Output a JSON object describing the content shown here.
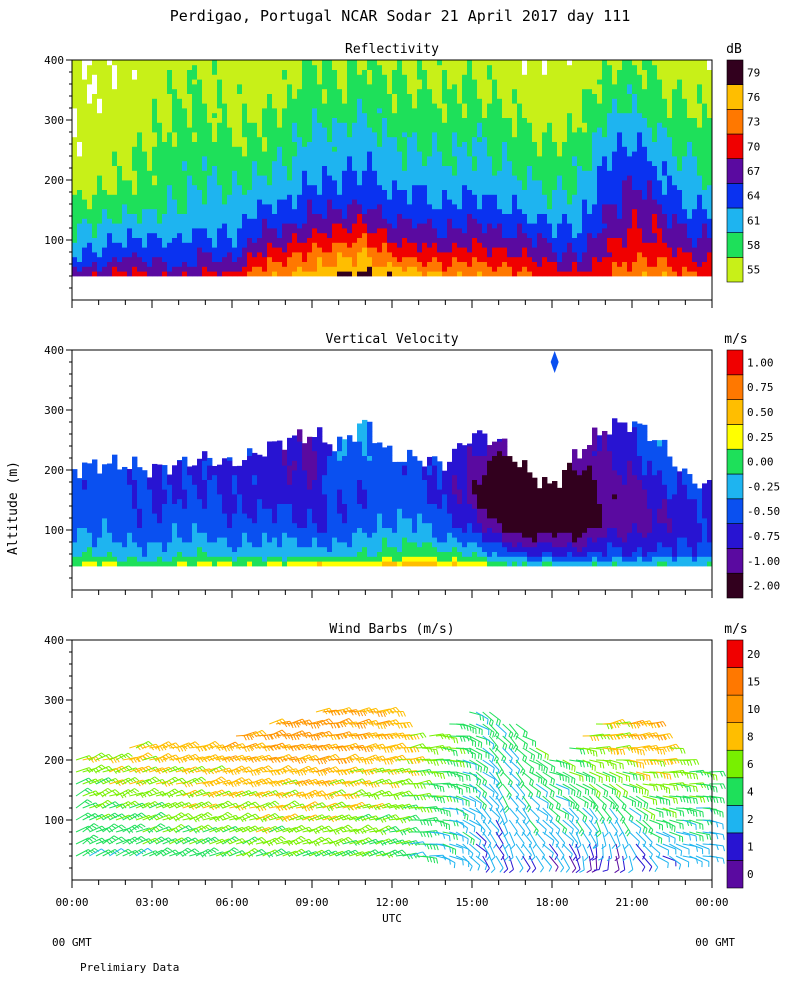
{
  "figure": {
    "title": "Perdigao, Portugal  NCAR Sodar  21 April 2017  day 111",
    "ylabel": "Altitude (m)",
    "xlabel": "UTC",
    "x_ticks": [
      "00:00",
      "03:00",
      "06:00",
      "09:00",
      "12:00",
      "15:00",
      "18:00",
      "21:00",
      "00:00"
    ],
    "y_ticks": [
      "100",
      "200",
      "300",
      "400"
    ],
    "footer_left": "00 GMT",
    "footer_right": "00 GMT",
    "note": "Prelimiary Data"
  },
  "chart_data": [
    {
      "type": "heatmap",
      "title": "Reflectivity",
      "unit": "dB",
      "xlabel": "UTC",
      "ylabel": "Altitude (m)",
      "xlim_hours": [
        0,
        24
      ],
      "ylim": [
        0,
        400
      ],
      "data_range_m": [
        40,
        400
      ],
      "levels": [
        "55",
        "58",
        "61",
        "64",
        "67",
        "70",
        "73",
        "76",
        "79"
      ],
      "colors": [
        "#c8f018",
        "#1ee05a",
        "#1eb4f0",
        "#0a32f0",
        "#5a0aa0",
        "#f00000",
        "#ff7800",
        "#ffbe00",
        "#32001e"
      ],
      "profile_heights_m": [
        40,
        55,
        75,
        100,
        130,
        160,
        200,
        260,
        330,
        400
      ],
      "profiles": [
        {
          "hour": 0.0,
          "values": [
            70,
            67,
            64,
            62,
            60,
            58,
            56,
            55,
            55,
            55
          ]
        },
        {
          "hour": 1.0,
          "values": [
            70,
            67,
            65,
            63,
            61,
            59,
            57,
            56,
            55,
            55
          ]
        },
        {
          "hour": 2.0,
          "values": [
            72,
            69,
            67,
            64,
            62,
            60,
            58,
            57,
            56,
            55
          ]
        },
        {
          "hour": 3.0,
          "values": [
            70,
            68,
            66,
            64,
            62,
            60,
            59,
            58,
            57,
            56
          ]
        },
        {
          "hour": 4.0,
          "values": [
            70,
            67,
            65,
            64,
            62,
            61,
            60,
            59,
            58,
            57
          ]
        },
        {
          "hour": 5.0,
          "values": [
            71,
            69,
            67,
            65,
            63,
            62,
            61,
            60,
            58,
            57
          ]
        },
        {
          "hour": 6.0,
          "values": [
            71,
            68,
            66,
            64,
            63,
            62,
            60,
            58,
            57,
            56
          ]
        },
        {
          "hour": 7.0,
          "values": [
            75,
            73,
            71,
            68,
            66,
            63,
            61,
            59,
            57,
            56
          ]
        },
        {
          "hour": 8.0,
          "values": [
            76,
            74,
            72,
            69,
            66,
            64,
            62,
            60,
            58,
            56
          ]
        },
        {
          "hour": 9.0,
          "values": [
            78,
            76,
            74,
            71,
            68,
            66,
            64,
            62,
            60,
            58
          ]
        },
        {
          "hour": 10.0,
          "values": [
            80,
            77,
            75,
            72,
            69,
            66,
            64,
            62,
            59,
            57
          ]
        },
        {
          "hour": 11.0,
          "values": [
            80,
            78,
            76,
            73,
            70,
            67,
            65,
            63,
            60,
            58
          ]
        },
        {
          "hour": 12.0,
          "values": [
            79,
            76,
            73,
            70,
            67,
            65,
            63,
            61,
            59,
            57
          ]
        },
        {
          "hour": 13.0,
          "values": [
            78,
            75,
            72,
            69,
            67,
            65,
            63,
            61,
            59,
            57
          ]
        },
        {
          "hour": 14.0,
          "values": [
            76,
            73,
            71,
            68,
            66,
            64,
            62,
            60,
            58,
            57
          ]
        },
        {
          "hour": 15.0,
          "values": [
            77,
            74,
            72,
            70,
            67,
            65,
            63,
            61,
            59,
            57
          ]
        },
        {
          "hour": 16.0,
          "values": [
            75,
            73,
            71,
            68,
            66,
            64,
            62,
            60,
            58,
            56
          ]
        },
        {
          "hour": 17.0,
          "values": [
            74,
            72,
            70,
            68,
            65,
            63,
            61,
            59,
            57,
            55
          ]
        },
        {
          "hour": 18.0,
          "values": [
            72,
            70,
            68,
            66,
            64,
            62,
            60,
            58,
            56,
            55
          ]
        },
        {
          "hour": 19.0,
          "values": [
            71,
            69,
            67,
            65,
            63,
            62,
            61,
            59,
            57,
            55
          ]
        },
        {
          "hour": 20.0,
          "values": [
            73,
            72,
            70,
            69,
            67,
            66,
            65,
            63,
            60,
            57
          ]
        },
        {
          "hour": 21.0,
          "values": [
            76,
            74,
            72,
            71,
            70,
            69,
            67,
            64,
            61,
            58
          ]
        },
        {
          "hour": 22.0,
          "values": [
            76,
            74,
            72,
            70,
            69,
            67,
            65,
            62,
            59,
            57
          ]
        },
        {
          "hour": 23.0,
          "values": [
            74,
            72,
            70,
            68,
            66,
            64,
            62,
            60,
            58,
            56
          ]
        },
        {
          "hour": 24.0,
          "values": [
            73,
            71,
            69,
            67,
            65,
            63,
            61,
            59,
            57,
            55
          ]
        }
      ]
    },
    {
      "type": "heatmap",
      "title": "Vertical Velocity",
      "unit": "m/s",
      "xlabel": "UTC",
      "ylabel": "Altitude (m)",
      "xlim_hours": [
        0,
        24
      ],
      "ylim": [
        0,
        400
      ],
      "levels": [
        "-2.00",
        "-1.00",
        "-0.75",
        "-0.50",
        "-0.25",
        "0.00",
        "0.25",
        "0.50",
        "0.75",
        "1.00"
      ],
      "colors": [
        "#32001e",
        "#5a0aa0",
        "#2814d2",
        "#0a50f0",
        "#1eb4f0",
        "#1ee05a",
        "#ffff00",
        "#ffbe00",
        "#ff7800",
        "#f00000"
      ],
      "profile_heights_m": [
        40,
        50,
        60,
        80,
        100,
        130,
        160,
        200,
        250,
        300
      ],
      "profiles": [
        {
          "hour": 0.0,
          "top": 200,
          "values": [
            0.3,
            0.1,
            0.0,
            -0.15,
            -0.3,
            -0.35,
            -0.4,
            -0.4,
            -0.4,
            -0.4
          ]
        },
        {
          "hour": 1.0,
          "top": 210,
          "values": [
            0.4,
            0.15,
            0.0,
            -0.2,
            -0.3,
            -0.4,
            -0.4,
            -0.4,
            -0.4,
            -0.4
          ]
        },
        {
          "hour": 2.0,
          "top": 210,
          "values": [
            0.2,
            0.05,
            -0.1,
            -0.25,
            -0.35,
            -0.4,
            -0.45,
            -0.45,
            -0.45,
            -0.45
          ]
        },
        {
          "hour": 3.0,
          "top": 200,
          "values": [
            0.1,
            -0.05,
            -0.2,
            -0.3,
            -0.4,
            -0.5,
            -0.55,
            -0.55,
            -0.55,
            -0.55
          ]
        },
        {
          "hour": 4.0,
          "top": 210,
          "values": [
            0.3,
            0.1,
            -0.1,
            -0.2,
            -0.3,
            -0.4,
            -0.5,
            -0.5,
            -0.5,
            -0.5
          ]
        },
        {
          "hour": 5.0,
          "top": 220,
          "values": [
            0.4,
            0.2,
            0.0,
            -0.2,
            -0.3,
            -0.4,
            -0.5,
            -0.55,
            -0.55,
            -0.55
          ]
        },
        {
          "hour": 6.0,
          "top": 210,
          "values": [
            0.3,
            0.1,
            -0.1,
            -0.3,
            -0.4,
            -0.5,
            -0.55,
            -0.6,
            -0.6,
            -0.6
          ]
        },
        {
          "hour": 7.0,
          "top": 230,
          "values": [
            0.3,
            0.1,
            -0.1,
            -0.3,
            -0.4,
            -0.5,
            -0.6,
            -0.6,
            -0.6,
            -0.6
          ]
        },
        {
          "hour": 8.0,
          "top": 250,
          "values": [
            0.4,
            0.1,
            -0.1,
            -0.2,
            -0.3,
            -0.5,
            -0.6,
            -0.7,
            -0.7,
            -0.7
          ]
        },
        {
          "hour": 9.0,
          "top": 260,
          "values": [
            0.6,
            0.2,
            -0.1,
            -0.3,
            -0.5,
            -0.6,
            -0.7,
            -0.8,
            -0.8,
            -0.8
          ]
        },
        {
          "hour": 10.0,
          "top": 240,
          "values": [
            0.5,
            0.1,
            -0.1,
            -0.3,
            -0.4,
            -0.5,
            -0.4,
            -0.3,
            -0.3,
            -0.3
          ]
        },
        {
          "hour": 11.0,
          "top": 280,
          "values": [
            0.6,
            0.2,
            0.0,
            -0.1,
            -0.3,
            -0.4,
            -0.5,
            -0.4,
            -0.2,
            -0.2
          ]
        },
        {
          "hour": 12.0,
          "top": 220,
          "values": [
            0.7,
            0.3,
            0.1,
            0.0,
            -0.2,
            -0.3,
            -0.4,
            -0.4,
            -0.4,
            -0.4
          ]
        },
        {
          "hour": 13.0,
          "top": 220,
          "values": [
            0.8,
            0.4,
            0.2,
            0.0,
            -0.2,
            -0.3,
            -0.4,
            -0.4,
            -0.4,
            -0.4
          ]
        },
        {
          "hour": 14.0,
          "top": 210,
          "values": [
            0.6,
            0.3,
            0.1,
            -0.2,
            -0.4,
            -0.5,
            -0.6,
            -0.6,
            -0.6,
            -0.6
          ]
        },
        {
          "hour": 15.0,
          "top": 260,
          "values": [
            0.5,
            0.2,
            0.0,
            -0.3,
            -0.5,
            -0.7,
            -0.9,
            -0.8,
            -0.6,
            -0.6
          ]
        },
        {
          "hour": 16.0,
          "top": 250,
          "values": [
            0.2,
            0.0,
            -0.3,
            -0.6,
            -0.9,
            -1.3,
            -1.5,
            -1.2,
            -0.8,
            -0.8
          ]
        },
        {
          "hour": 17.0,
          "top": 200,
          "values": [
            0.1,
            -0.2,
            -0.5,
            -0.9,
            -1.2,
            -1.5,
            -1.6,
            -1.4,
            -1.4,
            -1.4
          ]
        },
        {
          "hour": 18.0,
          "top": 170,
          "values": [
            0.1,
            -0.2,
            -0.5,
            -0.8,
            -1.0,
            -1.3,
            -1.4,
            -1.4,
            -1.4,
            -1.4
          ]
        },
        {
          "hour": 19.0,
          "top": 230,
          "values": [
            0.0,
            -0.3,
            -0.6,
            -0.9,
            -1.2,
            -1.4,
            -1.3,
            -1.0,
            -0.9,
            -0.9
          ]
        },
        {
          "hour": 20.0,
          "top": 270,
          "values": [
            0.1,
            -0.2,
            -0.4,
            -0.6,
            -0.8,
            -0.9,
            -0.9,
            -0.8,
            -0.7,
            -0.7
          ]
        },
        {
          "hour": 21.0,
          "top": 280,
          "values": [
            0.0,
            -0.3,
            -0.5,
            -0.7,
            -0.8,
            -0.9,
            -0.9,
            -0.7,
            -0.6,
            -0.6
          ]
        },
        {
          "hour": 22.0,
          "top": 250,
          "values": [
            0.1,
            -0.1,
            -0.4,
            -0.6,
            -0.7,
            -0.8,
            -0.6,
            -0.4,
            -0.3,
            -0.3
          ]
        },
        {
          "hour": 23.0,
          "top": 190,
          "values": [
            0.0,
            -0.2,
            -0.4,
            -0.5,
            -0.6,
            -0.6,
            -0.5,
            -0.4,
            -0.4,
            -0.4
          ]
        },
        {
          "hour": 24.0,
          "top": 170,
          "values": [
            0.0,
            -0.2,
            -0.4,
            -0.5,
            -0.5,
            -0.5,
            -0.5,
            -0.5,
            -0.5,
            -0.5
          ]
        }
      ],
      "isolated_cell": {
        "hour": 18.1,
        "altitude_m": 380,
        "value": "-0.50"
      }
    },
    {
      "type": "scatter",
      "subtype": "wind_barbs",
      "title": "Wind Barbs (m/s)",
      "unit": "m/s",
      "xlabel": "UTC",
      "ylabel": "Altitude (m)",
      "xlim_hours": [
        0,
        24
      ],
      "ylim": [
        0,
        400
      ],
      "levels": [
        "0",
        "1",
        "2",
        "4",
        "6",
        "8",
        "10",
        "15",
        "20"
      ],
      "colors": [
        "#5a0aa0",
        "#2814d2",
        "#1eb4f0",
        "#1ee05a",
        "#78f000",
        "#ffbe00",
        "#ff9600",
        "#ff7800",
        "#f00000"
      ],
      "barb_levels_m": [
        40,
        60,
        80,
        100,
        120,
        140,
        160,
        180,
        200,
        220,
        240,
        260,
        280,
        300
      ],
      "time_step_hours": 0.25,
      "wind_tops": [
        {
          "hour": 0,
          "top": 200
        },
        {
          "hour": 2,
          "top": 220
        },
        {
          "hour": 4,
          "top": 220
        },
        {
          "hour": 6,
          "top": 240
        },
        {
          "hour": 8,
          "top": 270
        },
        {
          "hour": 10,
          "top": 290
        },
        {
          "hour": 11.5,
          "top": 300
        },
        {
          "hour": 13,
          "top": 230
        },
        {
          "hour": 15,
          "top": 290
        },
        {
          "hour": 16.5,
          "top": 270
        },
        {
          "hour": 18,
          "top": 200
        },
        {
          "hour": 20,
          "top": 280
        },
        {
          "hour": 21.5,
          "top": 270
        },
        {
          "hour": 23,
          "top": 200
        },
        {
          "hour": 24,
          "top": 180
        }
      ],
      "speed_profiles": [
        {
          "hour": 0,
          "low": 4,
          "high": 8
        },
        {
          "hour": 6,
          "low": 6,
          "high": 10
        },
        {
          "hour": 9,
          "low": 6,
          "high": 11
        },
        {
          "hour": 12,
          "low": 5,
          "high": 9
        },
        {
          "hour": 14,
          "low": 3,
          "high": 6
        },
        {
          "hour": 15.5,
          "low": 2,
          "high": 4
        },
        {
          "hour": 18,
          "low": 2,
          "high": 6
        },
        {
          "hour": 20,
          "low": 1,
          "high": 8
        },
        {
          "hour": 21.5,
          "low": 2,
          "high": 10
        },
        {
          "hour": 24,
          "low": 3,
          "high": 6
        }
      ],
      "direction_profiles": [
        {
          "hour": 0,
          "low_deg": 60,
          "high_deg": 70
        },
        {
          "hour": 12,
          "low_deg": 70,
          "high_deg": 80
        },
        {
          "hour": 14,
          "low_deg": 110,
          "high_deg": 90
        },
        {
          "hour": 16,
          "low_deg": 160,
          "high_deg": 140
        },
        {
          "hour": 18,
          "low_deg": 140,
          "high_deg": 100
        },
        {
          "hour": 20,
          "low_deg": 190,
          "high_deg": 80
        },
        {
          "hour": 22,
          "low_deg": 120,
          "high_deg": 80
        },
        {
          "hour": 24,
          "low_deg": 100,
          "high_deg": 90
        }
      ]
    }
  ]
}
